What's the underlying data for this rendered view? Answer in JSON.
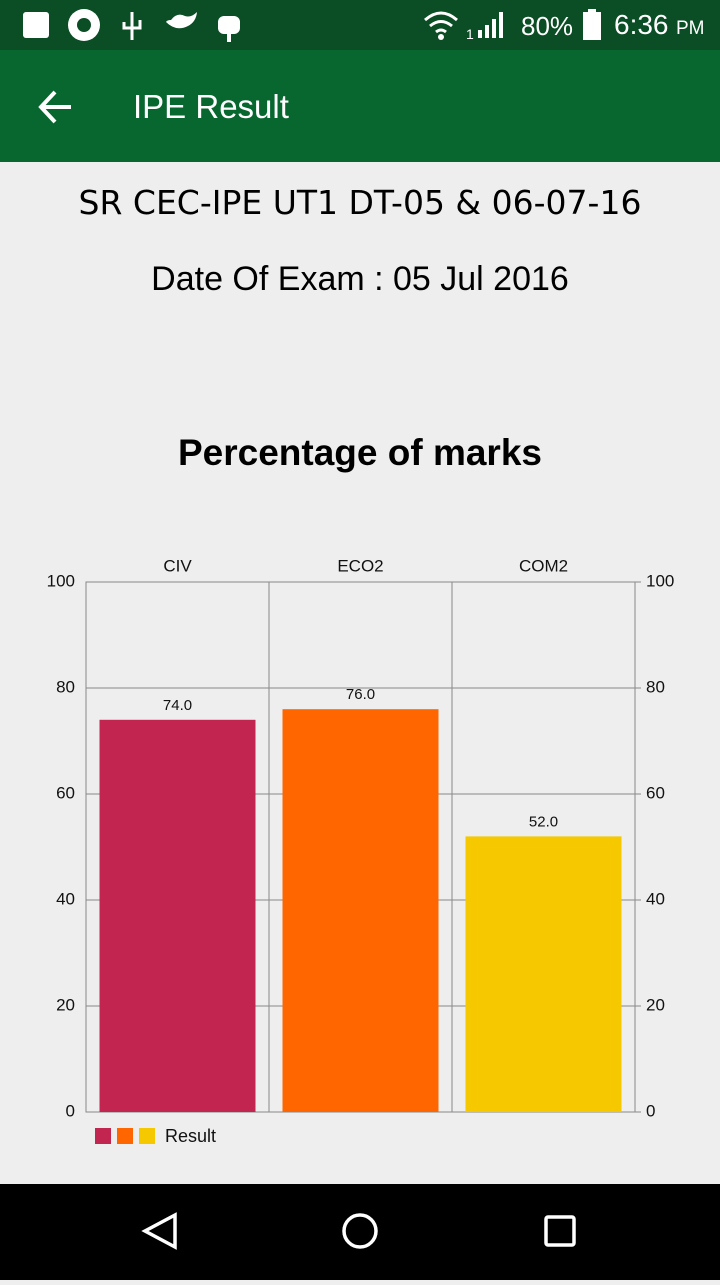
{
  "status_bar": {
    "sim_slot": "1",
    "battery": "80%",
    "time": "6:36",
    "ampm": "PM"
  },
  "app_bar": {
    "title": "IPE Result"
  },
  "header": {
    "exam_name": "SR CEC-IPE UT1 DT-05 & 06-07-16",
    "exam_date": "Date Of Exam : 05 Jul 2016"
  },
  "chart_data": {
    "type": "bar",
    "title": "Percentage of marks",
    "categories": [
      "CIV",
      "ECO2",
      "COM2"
    ],
    "series": [
      {
        "name": "Result",
        "colors": [
          "#c2254f",
          "#ff6600",
          "#f5c800"
        ],
        "values": [
          74,
          76,
          52
        ],
        "value_labels": [
          "74.0",
          "76.0",
          "52.0"
        ]
      }
    ],
    "ylim": [
      0,
      100
    ],
    "yticks": [
      0,
      20,
      40,
      60,
      80,
      100
    ],
    "y2lim": [
      0,
      100
    ],
    "y2ticks": [
      0,
      20,
      40,
      60,
      80,
      100
    ],
    "grid": true,
    "legend": "bottom-left"
  }
}
